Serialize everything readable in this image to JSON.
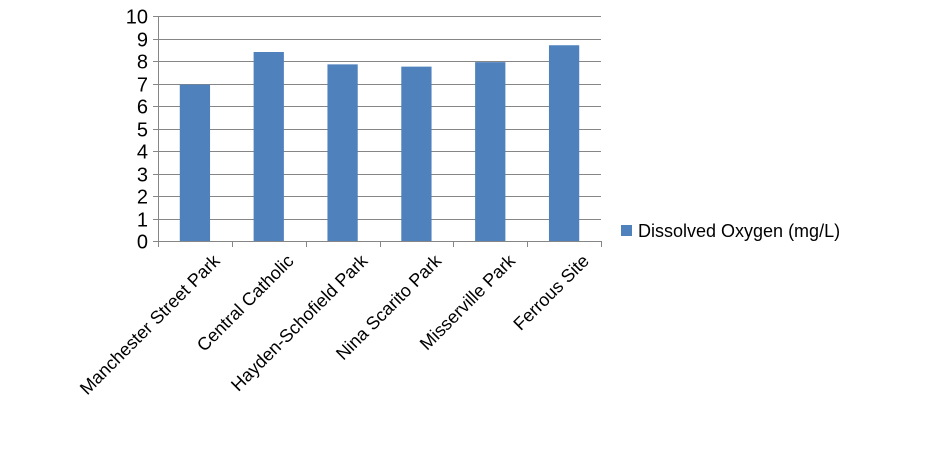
{
  "chart_data": {
    "type": "bar",
    "categories": [
      "Manchester Street Park",
      "Central Catholic",
      "Hayden-Schofield Park",
      "Nina Scarito Park",
      "Misserville Park",
      "Ferrous Site"
    ],
    "series": [
      {
        "name": "Dissolved Oxygen (mg/L)",
        "values": [
          6.95,
          8.4,
          7.85,
          7.75,
          7.95,
          8.7
        ],
        "color": "#4f81bd"
      }
    ],
    "title": "",
    "xlabel": "",
    "ylabel": "",
    "ylim": [
      0,
      10
    ],
    "yticks": [
      0,
      1,
      2,
      3,
      4,
      5,
      6,
      7,
      8,
      9,
      10
    ],
    "grid": true,
    "legend_position": "right"
  }
}
